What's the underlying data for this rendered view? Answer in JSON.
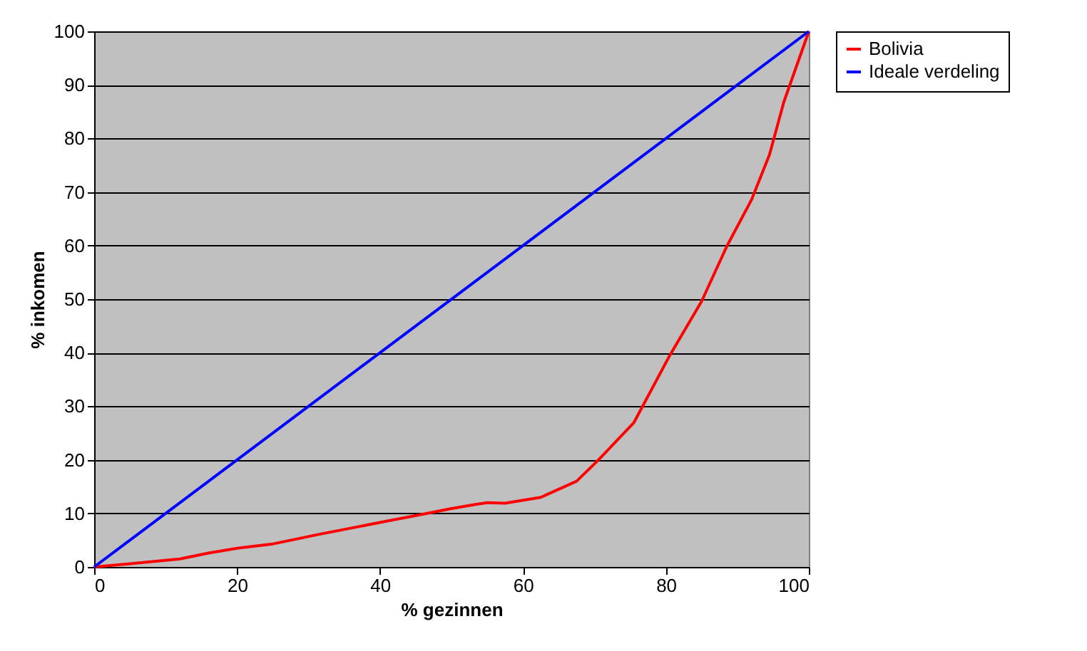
{
  "chart_data": {
    "type": "line",
    "xlabel": "% gezinnen",
    "ylabel": "% inkomen",
    "series": [
      {
        "name": "Bolivia",
        "color": "#ff0000",
        "x": [
          0,
          5,
          12,
          16,
          20,
          25,
          31.5,
          40,
          47,
          50,
          53.5,
          55,
          57.5,
          62.5,
          67.5,
          70.5,
          75.5,
          80.5,
          85,
          88.5,
          92,
          94.5,
          96.5,
          100
        ],
        "values": [
          0,
          0.6,
          1.5,
          2.6,
          3.5,
          4.3,
          6.1,
          8.3,
          10.1,
          10.9,
          11.7,
          12,
          11.9,
          13,
          16,
          19.9,
          26.9,
          39.4,
          49.6,
          59.8,
          68.6,
          77,
          86.8,
          100
        ]
      },
      {
        "name": "Ideale verdeling",
        "color": "#0000ff",
        "x": [
          0,
          100
        ],
        "values": [
          0,
          100
        ]
      }
    ],
    "xlim": [
      0,
      100
    ],
    "xticks": [
      0,
      20,
      40,
      60,
      80,
      100
    ],
    "ylim": [
      0,
      100
    ],
    "yticks": [
      0,
      10,
      20,
      30,
      40,
      50,
      60,
      70,
      80,
      90,
      100
    ],
    "grid": "y",
    "legend": "right"
  }
}
